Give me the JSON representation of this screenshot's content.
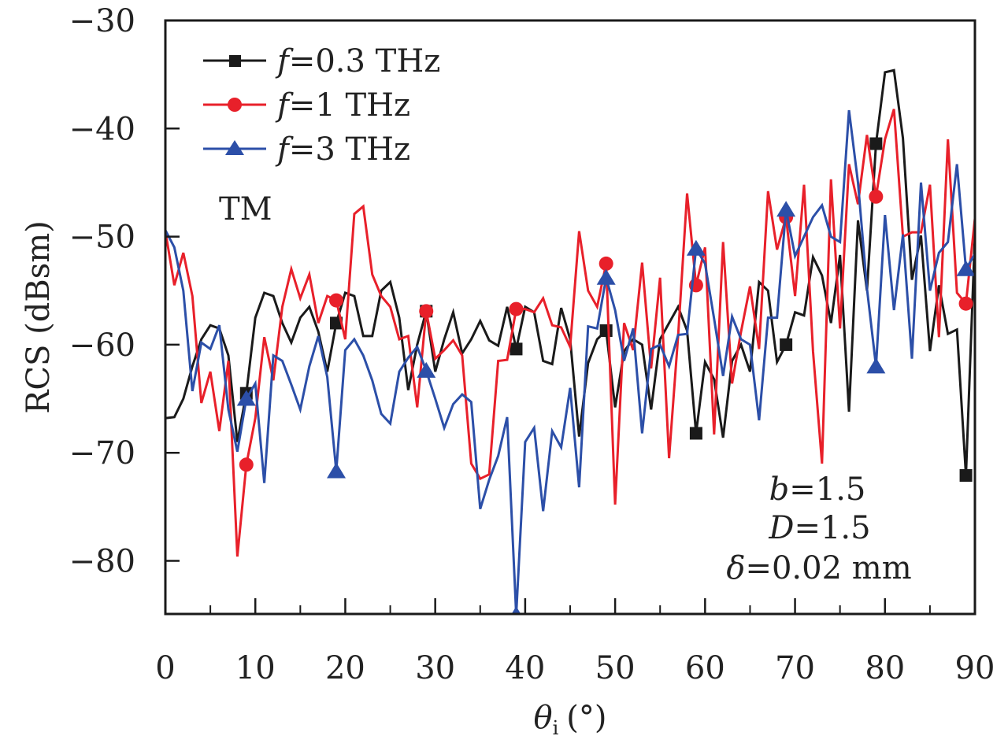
{
  "chart_data": {
    "type": "line",
    "title": "",
    "xlabel_symbol": "θ",
    "xlabel_sub": "i",
    "xlabel_unit": "(°)",
    "ylabel": "RCS (dBsm)",
    "xlim": [
      0,
      90
    ],
    "ylim": [
      -85,
      -30
    ],
    "grid": false,
    "legend_position": "top-left",
    "x_ticks": [
      0,
      10,
      20,
      30,
      40,
      50,
      60,
      70,
      80,
      90
    ],
    "x_tick_labels": [
      "0",
      "10",
      "20",
      "30",
      "40",
      "50",
      "60",
      "70",
      "80",
      "90"
    ],
    "x_minor_ticks": [
      5,
      15,
      25,
      35,
      45,
      55,
      65,
      75,
      85
    ],
    "y_ticks": [
      -30,
      -40,
      -50,
      -60,
      -70,
      -80
    ],
    "y_tick_labels": [
      "−30",
      "−40",
      "−50",
      "−60",
      "−70",
      "−80"
    ],
    "x": [
      0,
      1,
      2,
      3,
      4,
      5,
      6,
      7,
      8,
      9,
      10,
      11,
      12,
      13,
      14,
      15,
      16,
      17,
      18,
      19,
      20,
      21,
      22,
      23,
      24,
      25,
      26,
      27,
      28,
      29,
      30,
      31,
      32,
      33,
      34,
      35,
      36,
      37,
      38,
      39,
      40,
      41,
      42,
      43,
      44,
      45,
      46,
      47,
      48,
      49,
      50,
      51,
      52,
      53,
      54,
      55,
      56,
      57,
      58,
      59,
      60,
      61,
      62,
      63,
      64,
      65,
      66,
      67,
      68,
      69,
      70,
      71,
      72,
      73,
      74,
      75,
      76,
      77,
      78,
      79,
      80,
      81,
      82,
      83,
      84,
      85,
      86,
      87,
      88,
      89,
      90
    ],
    "marker_x": [
      9,
      19,
      29,
      39,
      49,
      59,
      69,
      79,
      89
    ],
    "series": [
      {
        "name": "f=0.3 THz",
        "label_var": "f",
        "label_value": "=0.3 THz",
        "color": "#1a1a1a",
        "marker": "square",
        "values": [
          -66.8,
          -66.7,
          -65.0,
          -62.0,
          -59.5,
          -58.2,
          -58.5,
          -61.0,
          -69.0,
          -64.5,
          -57.5,
          -55.2,
          -55.5,
          -58.0,
          -59.8,
          -57.5,
          -56.5,
          -58.8,
          -62.5,
          -58.0,
          -55.2,
          -55.5,
          -59.2,
          -59.2,
          -55.0,
          -54.2,
          -57.5,
          -64.2,
          -60.0,
          -56.9,
          -62.5,
          -59.5,
          -57.0,
          -60.8,
          -59.5,
          -57.8,
          -59.6,
          -60.1,
          -56.5,
          -60.4,
          -56.5,
          -57.0,
          -61.5,
          -61.8,
          -56.6,
          -59.5,
          -68.5,
          -61.7,
          -59.5,
          -58.7,
          -65.8,
          -60.6,
          -59.5,
          -60.0,
          -66.0,
          -59.5,
          -58.0,
          -56.5,
          -58.7,
          -68.2,
          -61.6,
          -63.2,
          -68.6,
          -61.5,
          -60.0,
          -62.5,
          -54.2,
          -55.0,
          -61.6,
          -60.0,
          -57.0,
          -57.3,
          -51.9,
          -53.6,
          -58.0,
          -51.7,
          -66.2,
          -48.5,
          -55.0,
          -41.4,
          -34.8,
          -34.6,
          -40.9,
          -54.0,
          -49.9,
          -60.6,
          -54.5,
          -59.0,
          -58.6,
          -72.1,
          -49.8
        ]
      },
      {
        "name": "f=1 THz",
        "label_var": "f",
        "label_value": "=1 THz",
        "color": "#e8202a",
        "marker": "circle",
        "values": [
          -49.5,
          -54.5,
          -51.5,
          -55.5,
          -65.4,
          -62.5,
          -68.0,
          -61.5,
          -79.6,
          -71.1,
          -66.8,
          -59.3,
          -63.3,
          -56.5,
          -53.0,
          -55.7,
          -53.5,
          -58.0,
          -55.5,
          -55.9,
          -59.5,
          -47.9,
          -47.2,
          -53.5,
          -55.5,
          -56.5,
          -59.5,
          -59.2,
          -65.8,
          -56.9,
          -61.3,
          -60.5,
          -59.6,
          -61.0,
          -71.0,
          -72.4,
          -72.0,
          -61.5,
          -61.4,
          -56.7,
          -56.7,
          -57.0,
          -55.7,
          -58.2,
          -58.4,
          -60.2,
          -49.5,
          -55.0,
          -56.5,
          -52.5,
          -74.8,
          -58.0,
          -60.5,
          -52.4,
          -62.2,
          -53.8,
          -70.5,
          -59.2,
          -46.0,
          -54.5,
          -51.0,
          -68.3,
          -50.5,
          -63.6,
          -58.8,
          -54.6,
          -60.4,
          -45.8,
          -51.2,
          -48.2,
          -55.5,
          -45.2,
          -60.6,
          -71.0,
          -44.7,
          -58.5,
          -43.3,
          -47.0,
          -40.6,
          -46.3,
          -41.0,
          -38.2,
          -50.0,
          -49.6,
          -49.6,
          -45.2,
          -59.3,
          -41.0,
          -55.2,
          -56.2,
          -48.3
        ]
      },
      {
        "name": "f=3 THz",
        "label_var": "f",
        "label_value": "=3 THz",
        "color": "#2c4fa8",
        "marker": "triangle",
        "values": [
          -49.4,
          -51.0,
          -55.0,
          -64.3,
          -59.8,
          -60.4,
          -58.2,
          -66.0,
          -69.9,
          -65.0,
          -63.6,
          -72.8,
          -61.0,
          -61.5,
          -63.7,
          -66.0,
          -62.0,
          -59.2,
          -63.0,
          -71.7,
          -60.5,
          -59.5,
          -61.0,
          -63.3,
          -66.4,
          -67.3,
          -62.5,
          -61.2,
          -60.2,
          -62.4,
          -65.0,
          -67.7,
          -65.5,
          -64.6,
          -65.3,
          -75.2,
          -72.5,
          -70.3,
          -66.7,
          -85.0,
          -69.0,
          -67.7,
          -75.4,
          -68.0,
          -69.5,
          -64.0,
          -73.2,
          -58.3,
          -58.5,
          -53.8,
          -56.8,
          -61.5,
          -58.5,
          -68.2,
          -60.4,
          -60.0,
          -62.0,
          -59.1,
          -59.0,
          -51.1,
          -52.5,
          -57.6,
          -62.9,
          -57.4,
          -59.5,
          -60.0,
          -67.0,
          -57.5,
          -57.5,
          -47.5,
          -51.8,
          -50.0,
          -48.2,
          -47.1,
          -50.0,
          -50.5,
          -38.3,
          -45.0,
          -54.8,
          -62.0,
          -48.0,
          -56.8,
          -49.8,
          -61.3,
          -45.0,
          -55.0,
          -51.5,
          -50.5,
          -43.3,
          -53.0,
          -51.6
        ]
      }
    ],
    "annotations": {
      "mode": "TM",
      "params": [
        {
          "var": "b",
          "value": "=1.5"
        },
        {
          "var": "D",
          "value": "=1.5"
        },
        {
          "var": "δ",
          "value": "=0.02 mm"
        }
      ]
    }
  }
}
